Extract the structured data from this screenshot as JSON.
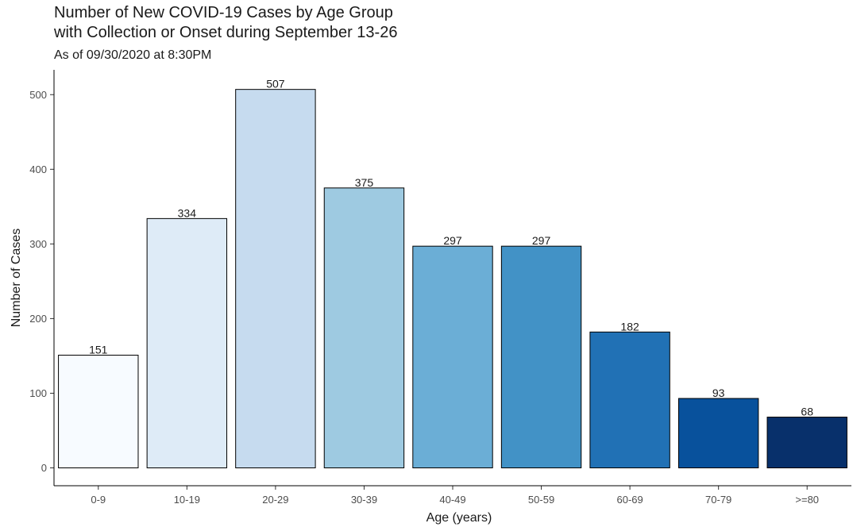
{
  "chart_data": {
    "type": "bar",
    "title_lines": [
      "Number of New COVID-19 Cases by Age Group",
      "with Collection or Onset during September 13-26"
    ],
    "subtitle": "As of 09/30/2020 at 8:30PM",
    "xlabel": "Age (years)",
    "ylabel": "Number of Cases",
    "categories": [
      "0-9",
      "10-19",
      "20-29",
      "30-39",
      "40-49",
      "50-59",
      "60-69",
      "70-79",
      ">=80"
    ],
    "values": [
      151,
      334,
      507,
      375,
      297,
      297,
      182,
      93,
      68
    ],
    "colors": [
      "#F7FBFF",
      "#DEEBF7",
      "#C6DBEF",
      "#9ECAE1",
      "#6BAED6",
      "#4292C6",
      "#2171B5",
      "#08519C",
      "#08306B"
    ],
    "ylim": [
      0,
      530
    ],
    "yticks": [
      0,
      100,
      200,
      300,
      400,
      500
    ],
    "grid": false,
    "legend": "none"
  }
}
